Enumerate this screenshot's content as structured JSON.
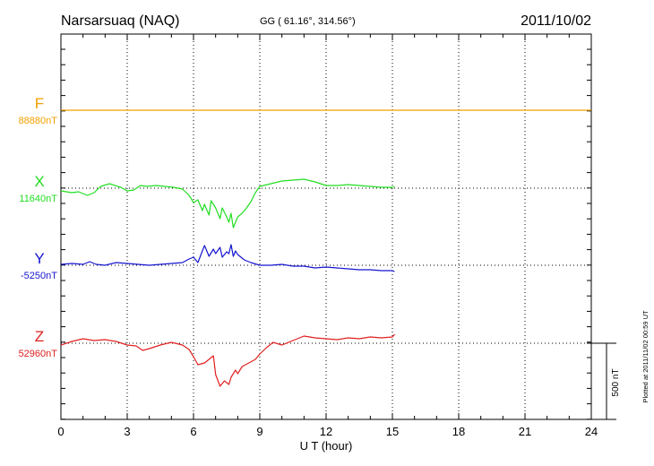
{
  "header": {
    "station": "Narsarsuaq (NAQ)",
    "coords": "GG ( 61.16°, 314.56°)",
    "date": "2011/10/02"
  },
  "footer": {
    "plotted": "Plotted at 2011/11/02 00:59 UT",
    "scale_label": "500 nT"
  },
  "chart_data": {
    "type": "line",
    "xlabel": "U T (hour)",
    "xlim": [
      0,
      24
    ],
    "xticks": [
      "0",
      "3",
      "6",
      "9",
      "12",
      "15",
      "18",
      "21",
      "24"
    ],
    "series": [
      {
        "name": "F",
        "baseline_label": "88880nT",
        "color": "#f0a000",
        "x": [
          0,
          24
        ],
        "offset": [
          0,
          0
        ]
      },
      {
        "name": "X",
        "baseline_label": "11640nT",
        "color": "#22dd22",
        "x": [
          0,
          0.5,
          0.8,
          1.2,
          1.5,
          1.8,
          2.2,
          2.7,
          3.0,
          3.3,
          3.6,
          3.9,
          4.3,
          4.7,
          5.1,
          5.5,
          5.8,
          6.0,
          6.2,
          6.4,
          6.5,
          6.7,
          6.8,
          7.0,
          7.2,
          7.3,
          7.5,
          7.6,
          7.7,
          7.8,
          7.9,
          8.0,
          8.2,
          8.4,
          8.6,
          8.8,
          9.0,
          9.5,
          10.0,
          10.5,
          11.0,
          11.5,
          12.0,
          12.5,
          13.0,
          13.5,
          14.0,
          14.5,
          15.0,
          15.1
        ],
        "offset": [
          -3,
          -5,
          -4,
          -8,
          -5,
          2,
          5,
          1,
          -3,
          -2,
          3,
          2,
          3,
          2,
          1,
          -1,
          -8,
          -16,
          -13,
          -25,
          -18,
          -30,
          -14,
          -22,
          -34,
          -22,
          -32,
          -38,
          -28,
          -44,
          -38,
          -32,
          -28,
          -22,
          -15,
          -5,
          2,
          5,
          8,
          9,
          10,
          7,
          3,
          3,
          4,
          3,
          2,
          1,
          1,
          2
        ]
      },
      {
        "name": "Y",
        "baseline_label": "-5250nT",
        "color": "#1515d0",
        "x": [
          0,
          0.5,
          1.0,
          1.3,
          1.6,
          2.0,
          2.5,
          3.0,
          3.5,
          4.0,
          4.5,
          5.0,
          5.5,
          5.8,
          6.0,
          6.2,
          6.4,
          6.5,
          6.7,
          6.9,
          7.0,
          7.2,
          7.3,
          7.5,
          7.6,
          7.7,
          7.8,
          7.9,
          8.0,
          8.3,
          8.6,
          9.0,
          9.5,
          10.0,
          10.5,
          11.0,
          11.5,
          12.0,
          12.5,
          13.0,
          13.5,
          14.0,
          14.5,
          15.0,
          15.1
        ],
        "offset": [
          1,
          2,
          1,
          4,
          1,
          0,
          3,
          2,
          1,
          0,
          1,
          2,
          3,
          7,
          9,
          3,
          16,
          22,
          10,
          18,
          13,
          20,
          9,
          15,
          13,
          23,
          10,
          16,
          12,
          6,
          3,
          0,
          0,
          1,
          -1,
          -1,
          -3,
          -2,
          -3,
          -4,
          -5,
          -5,
          -6,
          -6,
          -7
        ]
      },
      {
        "name": "Z",
        "baseline_label": "52960nT",
        "color": "#e02020",
        "x": [
          0,
          0.5,
          1.0,
          1.5,
          2.0,
          2.5,
          3.0,
          3.4,
          3.7,
          4.0,
          4.5,
          5.0,
          5.5,
          5.8,
          6.0,
          6.2,
          6.5,
          6.7,
          6.9,
          7.0,
          7.2,
          7.4,
          7.6,
          7.7,
          7.9,
          8.0,
          8.2,
          8.5,
          8.8,
          9.0,
          9.3,
          9.6,
          10.0,
          10.5,
          11.0,
          11.5,
          12.0,
          12.5,
          13.0,
          13.5,
          14.0,
          14.5,
          15.0,
          15.1
        ],
        "offset": [
          -2,
          2,
          5,
          3,
          4,
          2,
          -2,
          -3,
          -8,
          -6,
          -2,
          1,
          -2,
          -7,
          -15,
          -24,
          -22,
          -18,
          -14,
          -35,
          -48,
          -42,
          -46,
          -38,
          -30,
          -34,
          -26,
          -22,
          -18,
          -12,
          -5,
          1,
          -2,
          3,
          8,
          6,
          5,
          4,
          6,
          5,
          7,
          6,
          7,
          10
        ]
      }
    ],
    "scale": {
      "nT_per_bar": 500,
      "label": "500 nT"
    },
    "grid": true
  }
}
